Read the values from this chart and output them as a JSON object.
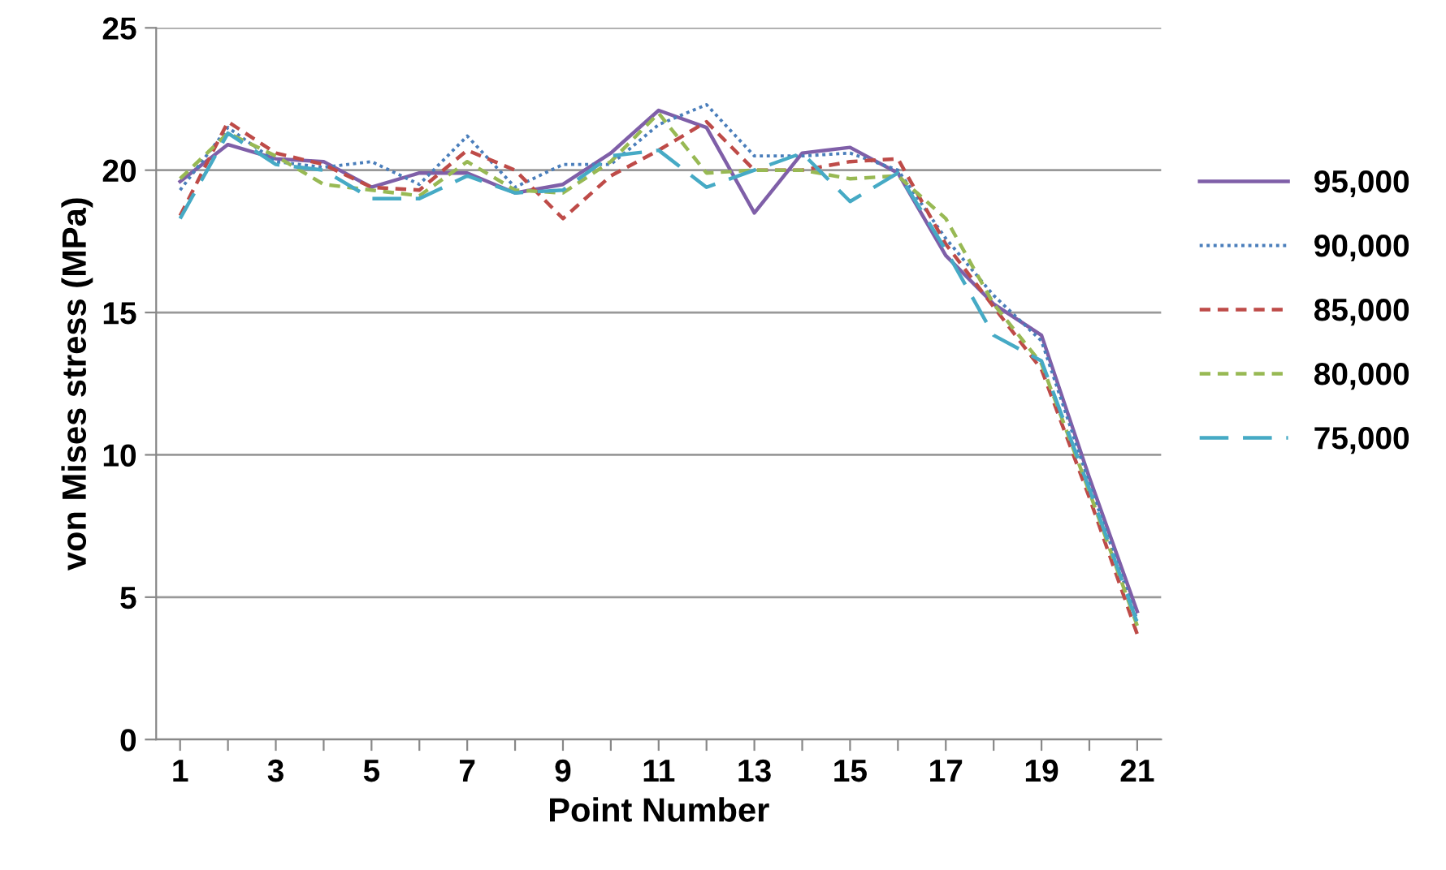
{
  "chart_data": {
    "type": "line",
    "xlabel": "Point Number",
    "ylabel": "von Mises stress (MPa)",
    "x": [
      1,
      2,
      3,
      4,
      5,
      6,
      7,
      8,
      9,
      10,
      11,
      12,
      13,
      14,
      15,
      16,
      17,
      18,
      19,
      20,
      21
    ],
    "xlim": [
      0.5,
      21.5
    ],
    "xticks": [
      1,
      {
        "value": 2,
        "label": null
      },
      3,
      {
        "value": 4,
        "label": null
      },
      5,
      {
        "value": 6,
        "label": null
      },
      7,
      {
        "value": 8,
        "label": null
      },
      9,
      {
        "value": 10,
        "label": null
      },
      11,
      {
        "value": 12,
        "label": null
      },
      13,
      {
        "value": 14,
        "label": null
      },
      15,
      {
        "value": 16,
        "label": null
      },
      17,
      {
        "value": 18,
        "label": null
      },
      19,
      {
        "value": 20,
        "label": null
      },
      21
    ],
    "ylim": [
      0,
      25
    ],
    "yticks": [
      0,
      5,
      10,
      15,
      20,
      25
    ],
    "grid": "y",
    "legend": "right",
    "marker": "none",
    "series": [
      {
        "name": "95,000",
        "color": "#7f5fa8",
        "line_style": "solid",
        "values": [
          19.6,
          20.9,
          20.4,
          20.3,
          19.4,
          19.9,
          19.9,
          19.2,
          19.5,
          20.6,
          22.1,
          21.5,
          18.5,
          20.6,
          20.8,
          19.9,
          17.0,
          15.3,
          14.2,
          9.2,
          4.5
        ]
      },
      {
        "name": "90,000",
        "color": "#4a7ebb",
        "line_style": "dotted",
        "values": [
          19.3,
          21.5,
          20.3,
          20.1,
          20.3,
          19.5,
          21.2,
          19.4,
          20.2,
          20.2,
          21.6,
          22.3,
          20.5,
          20.5,
          20.6,
          20.0,
          17.6,
          15.6,
          14.0,
          9.0,
          4.2
        ]
      },
      {
        "name": "85,000",
        "color": "#be4b48",
        "line_style": "dashed",
        "values": [
          18.4,
          21.7,
          20.6,
          20.2,
          19.4,
          19.3,
          20.7,
          20.0,
          18.3,
          19.8,
          20.7,
          21.7,
          20.0,
          20.0,
          20.3,
          20.4,
          17.4,
          15.2,
          13.0,
          8.5,
          3.7
        ]
      },
      {
        "name": "80,000",
        "color": "#98b954",
        "line_style": "dashed",
        "values": [
          19.7,
          21.3,
          20.5,
          19.5,
          19.3,
          19.1,
          20.3,
          19.3,
          19.2,
          20.3,
          22.0,
          19.9,
          20.0,
          20.0,
          19.7,
          19.8,
          18.3,
          15.3,
          13.2,
          8.7,
          4.0
        ]
      },
      {
        "name": "75,000",
        "color": "#46aac5",
        "line_style": "longdash",
        "values": [
          18.3,
          21.3,
          20.2,
          20.0,
          19.0,
          19.0,
          19.8,
          19.2,
          19.3,
          20.5,
          20.7,
          19.4,
          20.0,
          20.6,
          18.9,
          19.9,
          17.2,
          14.2,
          13.3,
          8.8,
          4.1
        ]
      }
    ]
  }
}
